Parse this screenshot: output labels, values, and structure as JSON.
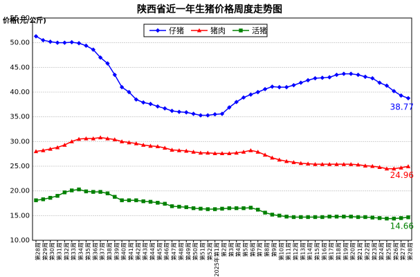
{
  "chart_data": {
    "type": "line",
    "title": "陕西省近一年生猪价格周度走势图",
    "y_label": "价格(元/公斤)",
    "categories": [
      "第28周",
      "第29周",
      "第30周",
      "第31周",
      "第32周",
      "第33周",
      "第34周",
      "第35周",
      "第36周",
      "第37周",
      "第38周",
      "第39周",
      "第40周",
      "第41周",
      "第42周",
      "第43周",
      "第44周",
      "第45周",
      "第46周",
      "第47周",
      "第48周",
      "第49周",
      "第50周",
      "第51周",
      "第52周",
      "2025年第1周",
      "第2周",
      "第3周",
      "第4周",
      "第5周",
      "第6周",
      "第7周",
      "第8周",
      "第9周",
      "第10周",
      "第11周",
      "第12周",
      "第13周",
      "第14周",
      "第15周",
      "第16周",
      "第17周",
      "第18周",
      "第19周",
      "第20周",
      "第21周",
      "第22周",
      "第23周",
      "第24周",
      "第25周",
      "第26周",
      "第27周",
      "第28周"
    ],
    "series": [
      {
        "name": "仔猪",
        "color": "#0000ff",
        "marker": "diamond",
        "values": [
          51.3,
          50.5,
          50.2,
          50.0,
          50.0,
          50.1,
          49.9,
          49.4,
          48.6,
          47.0,
          45.8,
          43.5,
          41.0,
          40.0,
          38.5,
          37.9,
          37.6,
          37.1,
          36.7,
          36.2,
          36.0,
          35.9,
          35.6,
          35.3,
          35.3,
          35.5,
          35.6,
          36.9,
          38.0,
          38.9,
          39.5,
          40.0,
          40.6,
          41.1,
          41.0,
          41.0,
          41.4,
          41.9,
          42.4,
          42.8,
          42.9,
          43.0,
          43.5,
          43.7,
          43.7,
          43.5,
          43.1,
          42.8,
          41.9,
          41.3,
          40.2,
          39.3,
          38.77
        ]
      },
      {
        "name": "猪肉",
        "color": "#ff0000",
        "marker": "triangle",
        "values": [
          28.0,
          28.2,
          28.5,
          28.8,
          29.3,
          30.0,
          30.5,
          30.6,
          30.6,
          30.8,
          30.6,
          30.4,
          30.0,
          29.8,
          29.6,
          29.3,
          29.1,
          29.0,
          28.7,
          28.3,
          28.2,
          28.1,
          27.9,
          27.7,
          27.7,
          27.6,
          27.6,
          27.6,
          27.7,
          27.9,
          28.2,
          27.9,
          27.3,
          26.7,
          26.3,
          26.0,
          25.8,
          25.6,
          25.5,
          25.4,
          25.4,
          25.4,
          25.4,
          25.4,
          25.4,
          25.3,
          25.1,
          25.0,
          24.8,
          24.5,
          24.5,
          24.7,
          24.96
        ]
      },
      {
        "name": "活猪",
        "color": "#008000",
        "marker": "square",
        "values": [
          18.1,
          18.3,
          18.6,
          19.0,
          19.7,
          20.1,
          20.3,
          19.9,
          19.8,
          19.8,
          19.5,
          18.8,
          18.1,
          18.1,
          18.1,
          17.9,
          17.8,
          17.6,
          17.4,
          16.9,
          16.8,
          16.7,
          16.5,
          16.4,
          16.3,
          16.3,
          16.4,
          16.5,
          16.5,
          16.5,
          16.6,
          16.2,
          15.6,
          15.2,
          15.0,
          14.8,
          14.7,
          14.7,
          14.7,
          14.7,
          14.7,
          14.8,
          14.8,
          14.8,
          14.8,
          14.7,
          14.7,
          14.6,
          14.5,
          14.4,
          14.4,
          14.5,
          14.66
        ]
      }
    ],
    "ylim": [
      10,
      55
    ],
    "yticks": [
      {
        "value": 10,
        "label": "10.00"
      },
      {
        "value": 15,
        "label": "15.00"
      },
      {
        "value": 20,
        "label": "20.00"
      },
      {
        "value": 25,
        "label": "25.00"
      },
      {
        "value": 30,
        "label": "30.00"
      },
      {
        "value": 35,
        "label": "35.00"
      },
      {
        "value": 40,
        "label": "40.00"
      },
      {
        "value": 45,
        "label": "45.00"
      },
      {
        "value": 50,
        "label": "50.00"
      },
      {
        "value": 55,
        "label": "55.00"
      }
    ],
    "grid": true,
    "legend": "top"
  }
}
